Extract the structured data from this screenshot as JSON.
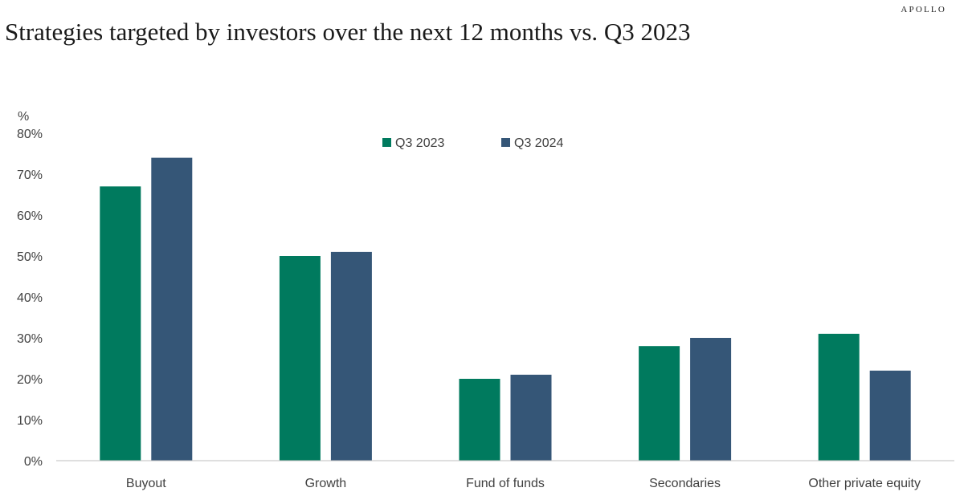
{
  "header": {
    "brand": "APOLLO",
    "title": "Strategies targeted by investors over the next 12 months vs. Q3 2023"
  },
  "colors": {
    "q3_2023": "#007A5E",
    "q3_2024": "#355677",
    "axis": "#bfbfbf",
    "text": "#404040"
  },
  "chart_data": {
    "type": "bar",
    "title": "Strategies targeted by investors over the next 12 months vs. Q3 2023",
    "ylabel": "%",
    "xlabel": "",
    "ylim": [
      0,
      80
    ],
    "yticks": [
      0,
      10,
      20,
      30,
      40,
      50,
      60,
      70,
      80
    ],
    "ytick_labels": [
      "0%",
      "10%",
      "20%",
      "30%",
      "40%",
      "50%",
      "60%",
      "70%",
      "80%"
    ],
    "grid": false,
    "legend_position": "top-center",
    "categories": [
      "Buyout",
      "Growth",
      "Fund of funds",
      "Secondaries",
      "Other private equity"
    ],
    "series": [
      {
        "name": "Q3 2023",
        "color": "#007A5E",
        "values": [
          67,
          50,
          20,
          28,
          31
        ]
      },
      {
        "name": "Q3 2024",
        "color": "#355677",
        "values": [
          74,
          51,
          21,
          30,
          22
        ]
      }
    ]
  }
}
